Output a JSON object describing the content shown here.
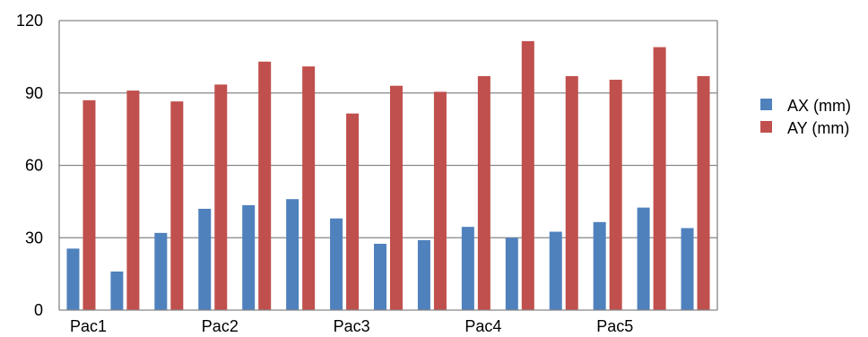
{
  "chart_data": {
    "type": "bar",
    "categories": [
      "Pac1",
      "",
      "",
      "Pac2",
      "",
      "",
      "Pac3",
      "",
      "",
      "Pac4",
      "",
      "",
      "Pac5",
      "",
      ""
    ],
    "x_tick_labels": [
      "Pac1",
      "Pac2",
      "Pac3",
      "Pac4",
      "Pac5"
    ],
    "series": [
      {
        "name": "AX (mm)",
        "color": "#4F81BD",
        "values": [
          25.5,
          16,
          32,
          42,
          43.5,
          46,
          38,
          27.5,
          29,
          34.5,
          30,
          32.5,
          36.5,
          42.5,
          34
        ]
      },
      {
        "name": "AY (mm)",
        "color": "#C0504D",
        "values": [
          87,
          91,
          86.5,
          93.5,
          103,
          101,
          81.5,
          93,
          90.5,
          97,
          111.5,
          97,
          95.5,
          109,
          97
        ]
      }
    ],
    "y_ticks": [
      "0",
      "30",
      "60",
      "90",
      "120"
    ],
    "ylim": [
      0,
      120
    ],
    "grid": true,
    "legend": "right",
    "title": "",
    "xlabel": "",
    "ylabel": ""
  }
}
